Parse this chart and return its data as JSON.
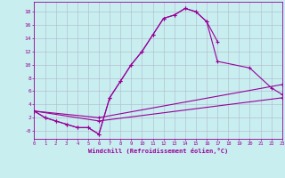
{
  "xlabel": "Windchill (Refroidissement éolien,°C)",
  "bg_color": "#c8eef0",
  "line_color": "#990099",
  "grid_color": "#b0b8cc",
  "xlim": [
    0,
    23
  ],
  "ylim": [
    -1.2,
    19.5
  ],
  "xticks": [
    0,
    1,
    2,
    3,
    4,
    5,
    6,
    7,
    8,
    9,
    10,
    11,
    12,
    13,
    14,
    15,
    16,
    17,
    18,
    19,
    20,
    21,
    22,
    23
  ],
  "yticks": [
    0,
    2,
    4,
    6,
    8,
    10,
    12,
    14,
    16,
    18
  ],
  "ytick_labels": [
    "-0",
    "2",
    "4",
    "6",
    "8",
    "10",
    "12",
    "14",
    "16",
    "18"
  ],
  "curve1_x": [
    0,
    1,
    2,
    3,
    4,
    5,
    6,
    7,
    8,
    9,
    10,
    11,
    12,
    13,
    14,
    15,
    16,
    17
  ],
  "curve1_y": [
    3,
    2,
    1.5,
    1,
    0.5,
    0.5,
    -0.5,
    5,
    7.5,
    10,
    12,
    14.5,
    17,
    17.5,
    18.5,
    18,
    16.5,
    13.5
  ],
  "curve2_x": [
    0,
    1,
    2,
    3,
    4,
    5,
    6,
    7,
    8,
    9,
    10,
    11,
    12,
    13,
    14,
    15,
    16,
    17,
    20,
    22,
    23
  ],
  "curve2_y": [
    3,
    2,
    1.5,
    1,
    0.5,
    0.5,
    -0.5,
    5,
    7.5,
    10,
    12,
    14.5,
    17,
    17.5,
    18.5,
    18,
    16.5,
    10.5,
    9.5,
    6.5,
    5.5
  ],
  "curve3_x": [
    0,
    6,
    23
  ],
  "curve3_y": [
    3,
    2,
    7.0
  ],
  "curve4_x": [
    0,
    6,
    23
  ],
  "curve4_y": [
    3,
    1.5,
    5.0
  ]
}
